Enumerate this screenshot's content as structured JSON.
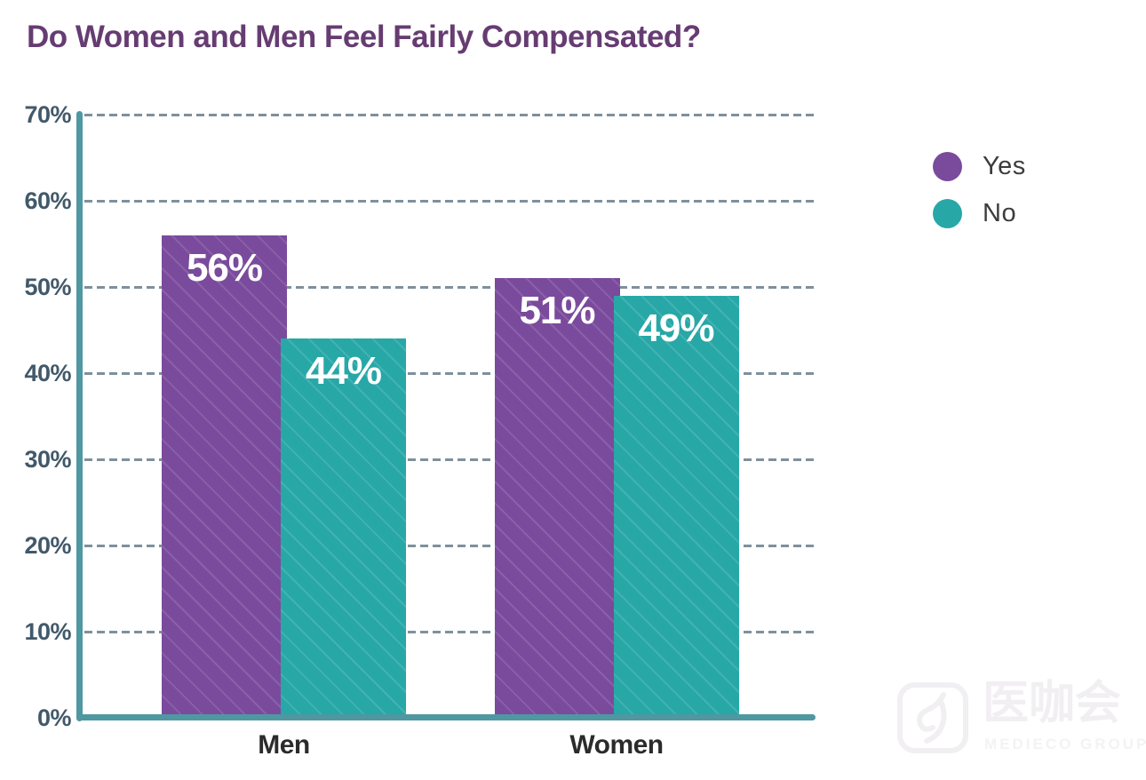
{
  "title": "Do Women and Men Feel Fairly Compensated?",
  "chart_data": {
    "type": "bar",
    "title": "Do Women and Men Feel Fairly Compensated?",
    "categories": [
      "Men",
      "Women"
    ],
    "series": [
      {
        "name": "Yes",
        "color": "#7a4a9c",
        "values": [
          56,
          51
        ]
      },
      {
        "name": "No",
        "color": "#28a7a7",
        "values": [
          44,
          49
        ]
      }
    ],
    "value_suffix": "%",
    "xlabel": "",
    "ylabel": "",
    "ylim": [
      0,
      70
    ],
    "yticks": [
      "0%",
      "10%",
      "20%",
      "30%",
      "40%",
      "50%",
      "60%",
      "70%"
    ],
    "grid": "horizontal-dashed",
    "legend_position": "right",
    "data_labels": [
      "56%",
      "44%",
      "51%",
      "49%"
    ]
  },
  "legend": {
    "items": [
      {
        "label": "Yes",
        "color": "#7a4a9c"
      },
      {
        "label": "No",
        "color": "#28a7a7"
      }
    ]
  },
  "colors": {
    "title": "#663c72",
    "axis": "#4f98a1",
    "gridline": "#7e909d",
    "tick_label": "#42596a",
    "category_label": "#2b2b2b",
    "legend_label": "#3c3c3c",
    "bar_label": "#ffffff"
  },
  "watermark": {
    "cjk": "医咖会",
    "latin": "MEDIECO GROUP"
  }
}
